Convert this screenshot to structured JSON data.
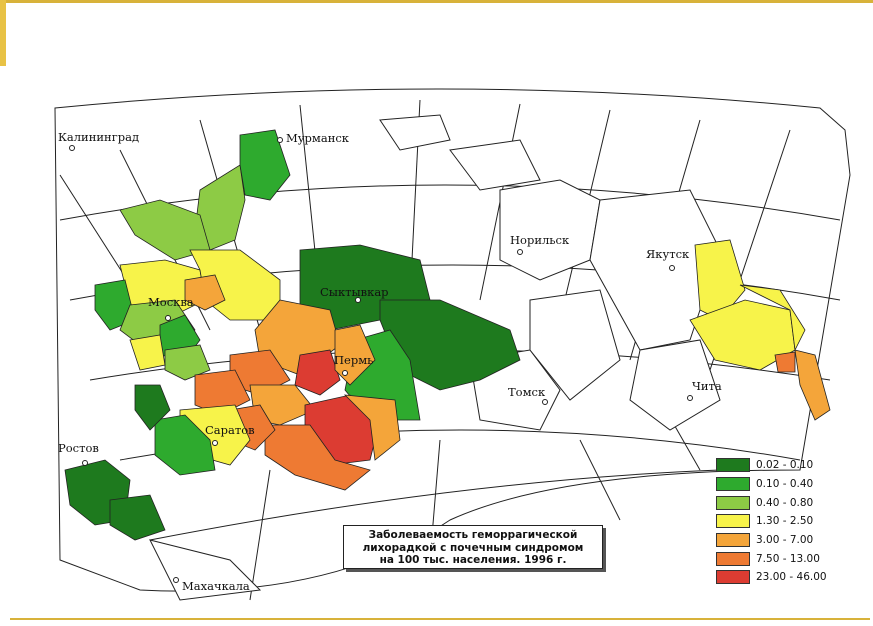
{
  "map": {
    "cities": [
      {
        "id": "kaliningrad",
        "name": "Калининград"
      },
      {
        "id": "murmansk",
        "name": "Мурманск"
      },
      {
        "id": "moscow",
        "name": "Москва"
      },
      {
        "id": "syktyvkar",
        "name": "Сыктывкар"
      },
      {
        "id": "norilsk",
        "name": "Норильск"
      },
      {
        "id": "yakutsk",
        "name": "Якутск"
      },
      {
        "id": "perm",
        "name": "Пермь"
      },
      {
        "id": "saratov",
        "name": "Саратов"
      },
      {
        "id": "tomsk",
        "name": "Томск"
      },
      {
        "id": "chita",
        "name": "Чита"
      },
      {
        "id": "rostov",
        "name": "Ростов"
      },
      {
        "id": "makhachkala",
        "name": "Махачкала"
      }
    ],
    "colors": {
      "c1": "#1e7a1e",
      "c2": "#2eaa2e",
      "c3": "#8dcb45",
      "c4": "#f7f34a",
      "c5": "#f4a53a",
      "c6": "#ee7a33",
      "c7": "#dc3c32"
    }
  },
  "legend": {
    "items": [
      {
        "label": "0.02 - 0.10",
        "color": "#1e7a1e"
      },
      {
        "label": "0.10 - 0.40",
        "color": "#2eaa2e"
      },
      {
        "label": "0.40 - 0.80",
        "color": "#8dcb45"
      },
      {
        "label": "1.30 - 2.50",
        "color": "#f7f34a"
      },
      {
        "label": "3.00 - 7.00",
        "color": "#f4a53a"
      },
      {
        "label": "7.50 - 13.00",
        "color": "#ee7a33"
      },
      {
        "label": "23.00 - 46.00",
        "color": "#dc3c32"
      }
    ]
  },
  "caption": {
    "line1": "Заболеваемость геморрагической",
    "line2": "лихорадкой с почечным синдромом",
    "line3": "на 100 тыс. населения. 1996 г."
  }
}
